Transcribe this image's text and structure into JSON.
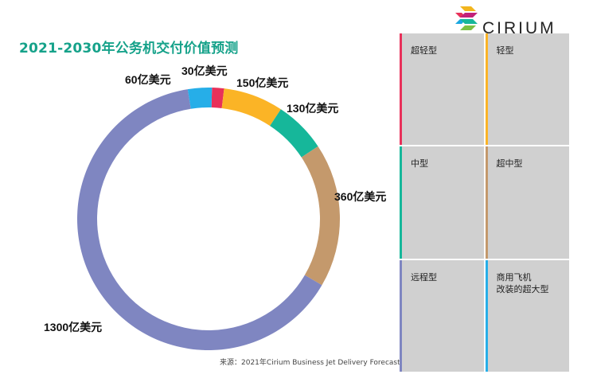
{
  "logo": {
    "text": "CIRIUM"
  },
  "chart_data": {
    "type": "pie",
    "style": "donut",
    "title": "2021-2030年公务机交付价值预测",
    "source": "来源：2021年Cirium Business Jet Delivery Forecast",
    "unit": "亿美元",
    "slices": [
      {
        "category": "超轻型",
        "value": 30,
        "label": "30亿美元",
        "color": "#e8315a"
      },
      {
        "category": "轻型",
        "value": 150,
        "label": "150亿美元",
        "color": "#fbb426"
      },
      {
        "category": "中型",
        "value": 130,
        "label": "130亿美元",
        "color": "#16b79a"
      },
      {
        "category": "超中型",
        "value": 360,
        "label": "360亿美元",
        "color": "#c4996c"
      },
      {
        "category": "远程型",
        "value": 1300,
        "label": "1300亿美元",
        "color": "#7f86c1"
      },
      {
        "category": "商用飞机\n改装的超大型",
        "value": 60,
        "label": "60亿美元",
        "color": "#26aee8"
      }
    ],
    "legend_placement": "right"
  }
}
